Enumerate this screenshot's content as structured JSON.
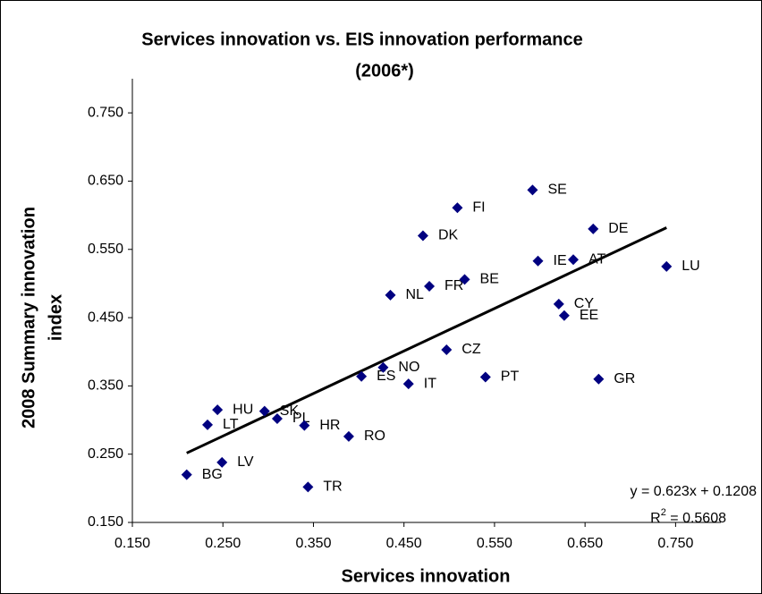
{
  "chart_data": {
    "type": "scatter",
    "title": [
      "Services innovation vs. EIS innovation performance",
      "(2006*)"
    ],
    "x_label": "Services innovation",
    "y_label": [
      "2008 Summary innovation",
      "index"
    ],
    "point_labels": [
      "BG",
      "LV",
      "LT",
      "HU",
      "SK",
      "PL",
      "HR",
      "TR",
      "RO",
      "ES",
      "NO",
      "IT",
      "CZ",
      "PT",
      "NL",
      "FR",
      "BE",
      "DK",
      "FI",
      "SE",
      "IE",
      "AT",
      "DE",
      "LU",
      "CY",
      "EE",
      "GR"
    ],
    "x": [
      0.21,
      0.249,
      0.233,
      0.244,
      0.296,
      0.31,
      0.34,
      0.344,
      0.389,
      0.403,
      0.427,
      0.455,
      0.497,
      0.54,
      0.435,
      0.478,
      0.517,
      0.471,
      0.509,
      0.592,
      0.598,
      0.637,
      0.659,
      0.74,
      0.621,
      0.627,
      0.665
    ],
    "values": [
      0.22,
      0.238,
      0.293,
      0.315,
      0.313,
      0.302,
      0.292,
      0.202,
      0.276,
      0.364,
      0.377,
      0.353,
      0.403,
      0.363,
      0.483,
      0.496,
      0.506,
      0.57,
      0.611,
      0.637,
      0.533,
      0.535,
      0.58,
      0.525,
      0.47,
      0.453,
      0.36
    ],
    "color": "#000080",
    "xlim": [
      0.15,
      0.8
    ],
    "ylim": [
      0.15,
      0.8
    ],
    "xticks": [
      {
        "value": 0.15,
        "label": "0.150"
      },
      {
        "value": 0.25,
        "label": "0.250"
      },
      {
        "value": 0.35,
        "label": "0.350"
      },
      {
        "value": 0.45,
        "label": "0.450"
      },
      {
        "value": 0.55,
        "label": "0.550"
      },
      {
        "value": 0.65,
        "label": "0.650"
      },
      {
        "value": 0.75,
        "label": "0.750"
      }
    ],
    "yticks": [
      {
        "value": 0.15,
        "label": "0.150"
      },
      {
        "value": 0.25,
        "label": "0.250"
      },
      {
        "value": 0.35,
        "label": "0.350"
      },
      {
        "value": 0.45,
        "label": "0.450"
      },
      {
        "value": 0.55,
        "label": "0.550"
      },
      {
        "value": 0.65,
        "label": "0.650"
      },
      {
        "value": 0.75,
        "label": "0.750"
      }
    ],
    "trendline": {
      "slope": 0.623,
      "intercept": 0.1208,
      "color": "#000000",
      "equation": "y = 0.623x + 0.1208",
      "r2_label": {
        "base": "R",
        "sup": "2",
        "rest": " = 0.5608"
      }
    }
  }
}
